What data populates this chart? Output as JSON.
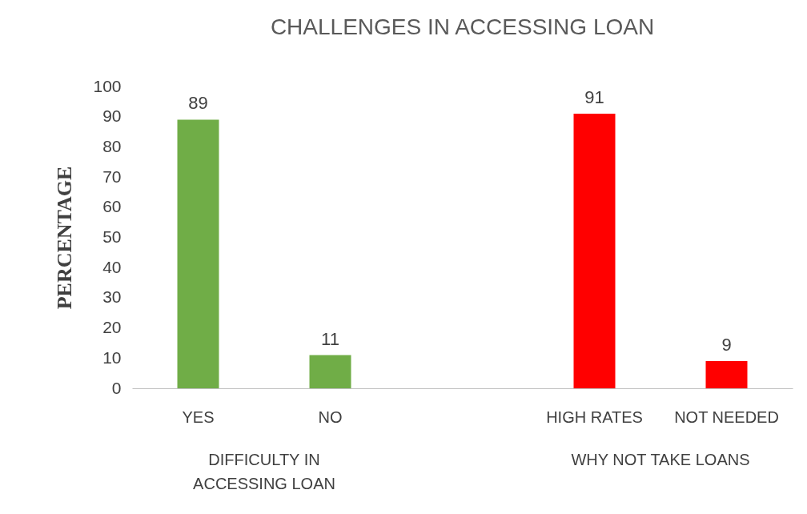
{
  "chart_data": {
    "type": "bar",
    "title": "CHALLENGES IN ACCESSING LOAN",
    "ylabel": "PERCENTAGE",
    "categories": [
      "YES",
      "NO",
      null,
      "HIGH RATES",
      "NOT NEEDED"
    ],
    "values": [
      89,
      11,
      null,
      91,
      9
    ],
    "colors": [
      "#70ad47",
      "#70ad47",
      null,
      "#ff0000",
      "#ff0000"
    ],
    "ylim": [
      0,
      100
    ],
    "yticks": [
      0,
      10,
      20,
      30,
      40,
      50,
      60,
      70,
      80,
      90,
      100
    ],
    "data_labels": true,
    "grid": false,
    "annotations": [
      "DIFFICULTY IN ACCESSING LOAN",
      "WHY NOT TAKE LOANS"
    ]
  }
}
